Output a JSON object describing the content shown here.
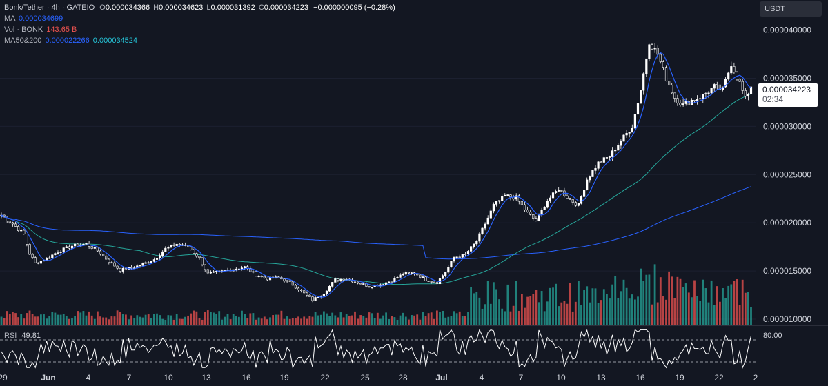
{
  "header": {
    "symbol": "Bonk/Tether · 4h · GATEIO",
    "o_label": "O",
    "o_value": "0.000034366",
    "h_label": "H",
    "h_value": "0.000034623",
    "l_label": "L",
    "l_value": "0.000031392",
    "c_label": "C",
    "c_value": "0.000034223",
    "change": "−0.000000095 (−0.28%)"
  },
  "indicators": {
    "ma_label": "MA",
    "ma_value": "0.000034699",
    "vol_label": "Vol · BONK",
    "vol_value": "143.65 B",
    "ma50_200_label": "MA50&200",
    "ma50_value": "0.000022266",
    "ma200_value": "0.000034524"
  },
  "price_axis": {
    "currency_button": "USDT",
    "ticks": [
      "0.000040000",
      "0.000035000",
      "0.000030000",
      "0.000025000",
      "0.000020000",
      "0.000015000",
      "0.000010000"
    ],
    "current_price": "0.000034223",
    "countdown": "02:34"
  },
  "rsi": {
    "label": "RSI",
    "value": "49.81",
    "level": "80.00"
  },
  "time_axis": {
    "labels": [
      "29",
      "Jun",
      "4",
      "7",
      "10",
      "13",
      "16",
      "19",
      "22",
      "25",
      "28",
      "Jul",
      "4",
      "7",
      "10",
      "13",
      "16",
      "19",
      "22",
      "2"
    ]
  },
  "colors": {
    "background": "#131722",
    "candle_up": "#ffffff",
    "candle_down": "#ffffff",
    "ma_fast": "#2962ff",
    "ma50": "#26a69a",
    "ma200": "#2962ff",
    "vol_up": "#26a69a",
    "vol_down": "#ef5350",
    "change_text": "#ffffff"
  },
  "chart_data": {
    "type": "candlestick",
    "interval": "4h",
    "y_range": [
      9.5e-06,
      4.24e-05
    ],
    "anchors": [
      [
        0,
        2.08e-05
      ],
      [
        4,
        1.99e-05
      ],
      [
        8,
        1.88e-05
      ],
      [
        10,
        1.68e-05
      ],
      [
        12,
        1.58e-05
      ],
      [
        16,
        1.63e-05
      ],
      [
        20,
        1.7e-05
      ],
      [
        25,
        1.76e-05
      ],
      [
        30,
        1.78e-05
      ],
      [
        34,
        1.71e-05
      ],
      [
        38,
        1.6e-05
      ],
      [
        42,
        1.51e-05
      ],
      [
        46,
        1.53e-05
      ],
      [
        50,
        1.57e-05
      ],
      [
        54,
        1.62e-05
      ],
      [
        58,
        1.73e-05
      ],
      [
        62,
        1.78e-05
      ],
      [
        66,
        1.75e-05
      ],
      [
        70,
        1.63e-05
      ],
      [
        73,
        1.47e-05
      ],
      [
        77,
        1.49e-05
      ],
      [
        82,
        1.52e-05
      ],
      [
        86,
        1.54e-05
      ],
      [
        90,
        1.46e-05
      ],
      [
        94,
        1.42e-05
      ],
      [
        98,
        1.43e-05
      ],
      [
        102,
        1.38e-05
      ],
      [
        106,
        1.29e-05
      ],
      [
        110,
        1.2e-05
      ],
      [
        114,
        1.27e-05
      ],
      [
        118,
        1.41e-05
      ],
      [
        122,
        1.42e-05
      ],
      [
        126,
        1.38e-05
      ],
      [
        130,
        1.34e-05
      ],
      [
        134,
        1.36e-05
      ],
      [
        138,
        1.4e-05
      ],
      [
        142,
        1.47e-05
      ],
      [
        146,
        1.48e-05
      ],
      [
        150,
        1.41e-05
      ],
      [
        154,
        1.38e-05
      ],
      [
        157,
        1.49e-05
      ],
      [
        160,
        1.64e-05
      ],
      [
        164,
        1.67e-05
      ],
      [
        168,
        1.81e-05
      ],
      [
        172,
        2.05e-05
      ],
      [
        174,
        2.18e-05
      ],
      [
        178,
        2.28e-05
      ],
      [
        182,
        2.26e-05
      ],
      [
        186,
        2.1e-05
      ],
      [
        189,
        2.02e-05
      ],
      [
        193,
        2.23e-05
      ],
      [
        197,
        2.35e-05
      ],
      [
        201,
        2.24e-05
      ],
      [
        204,
        2.18e-05
      ],
      [
        207,
        2.45e-05
      ],
      [
        211,
        2.62e-05
      ],
      [
        215,
        2.69e-05
      ],
      [
        219,
        2.85e-05
      ],
      [
        223,
        3e-05
      ],
      [
        226,
        3.38e-05
      ],
      [
        229,
        3.88e-05
      ],
      [
        232,
        3.75e-05
      ],
      [
        235,
        3.5e-05
      ],
      [
        238,
        3.3e-05
      ],
      [
        241,
        3.22e-05
      ],
      [
        244,
        3.27e-05
      ],
      [
        248,
        3.32e-05
      ],
      [
        252,
        3.41e-05
      ],
      [
        255,
        3.38e-05
      ],
      [
        258,
        3.65e-05
      ],
      [
        261,
        3.45e-05
      ],
      [
        263,
        3.28e-05
      ],
      [
        265,
        3.42e-05
      ]
    ],
    "volume_range": [
      0,
      1
    ],
    "rsi_range": [
      20,
      90
    ]
  }
}
